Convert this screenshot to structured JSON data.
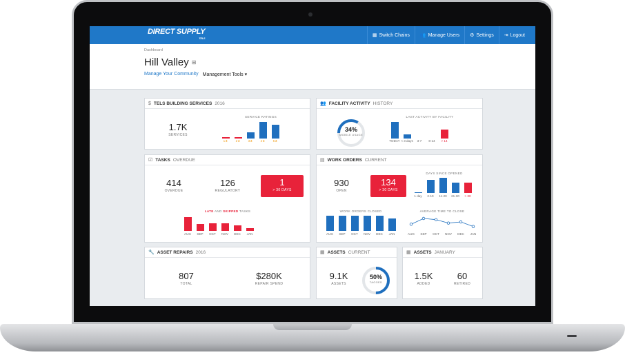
{
  "nav": {
    "logo_main": "DIRECT SUPPLY",
    "logo_sub": "TELS",
    "items": [
      {
        "label": "Switch Chains",
        "icon": "building-icon"
      },
      {
        "label": "Manage Users",
        "icon": "users-icon"
      },
      {
        "label": "Settings",
        "icon": "gear-icon"
      },
      {
        "label": "Logout",
        "icon": "logout-icon"
      }
    ]
  },
  "header": {
    "breadcrumb": "Dashboard",
    "title": "Hill Valley",
    "manage_link": "Manage Your Community",
    "tools_menu": "Management Tools ▾"
  },
  "building": {
    "title_bold": "TELS BUILDING SERVICES",
    "title_light": "2016",
    "stat_value": "1.7K",
    "stat_label": "SERVICES",
    "chart_title": "SERVICE RATINGS",
    "labels": [
      "1★",
      "2★",
      "3★",
      "4★",
      "5★"
    ],
    "values": [
      2,
      2,
      8,
      22,
      18
    ],
    "colors": [
      "red",
      "red",
      "blue",
      "blue",
      "blue"
    ]
  },
  "facility": {
    "title_bold": "FACILITY ACTIVITY",
    "title_light": "HISTORY",
    "donut_value": "34%",
    "donut_label": "MOBILE USAGE",
    "donut_fraction": 0.34,
    "chart_title": "LAST ACTIVITY BY FACILITY",
    "labels": [
      "TODAY",
      "< 3 days",
      "3-7",
      "8-14",
      "> 14"
    ],
    "values": [
      20,
      5,
      0,
      0,
      11
    ],
    "colors": [
      "blue",
      "blue",
      "blue",
      "blue",
      "red"
    ]
  },
  "tasks": {
    "title_bold": "TASKS",
    "title_light": "OVERDUE",
    "overdue_value": "414",
    "overdue_label": "OVERDUE",
    "regulatory_value": "126",
    "regulatory_label": "REGULATORY",
    "alert_value": "1",
    "alert_label": "> 30 DAYS",
    "chart_title_late": "LATE",
    "chart_title_and": "AND",
    "chart_title_skipped": "SKIPPED",
    "chart_title_tasks": "TASKS",
    "labels": [
      "AUG",
      "SEP",
      "OCT",
      "NOV",
      "DEC",
      "JAN"
    ],
    "values": [
      18,
      9,
      10,
      10,
      7,
      4
    ]
  },
  "workorders": {
    "title_bold": "WORK ORDERS",
    "title_light": "CURRENT",
    "open_value": "930",
    "open_label": "OPEN",
    "alert_value": "134",
    "alert_label": "> 30 DAYS",
    "days_title": "DAYS SINCE OPENED",
    "days_labels": [
      "1 day",
      "2-10",
      "11-20",
      "21-30",
      "> 30"
    ],
    "days_values": [
      1,
      18,
      21,
      14,
      14
    ],
    "days_colors": [
      "blue",
      "blue",
      "blue",
      "blue",
      "red"
    ],
    "closed_title": "WORK ORDERS CLOSED",
    "closed_labels": [
      "AUG",
      "SEP",
      "OCT",
      "NOV",
      "DEC",
      "JAN"
    ],
    "closed_values": [
      22,
      22,
      22,
      22,
      22,
      18
    ],
    "avg_title": "AVERAGE TIME TO CLOSE",
    "avg_labels": [
      "AUG",
      "SEP",
      "OCT",
      "NOV",
      "DEC",
      "JAN"
    ],
    "avg_values": [
      4,
      9,
      8,
      5,
      6,
      2
    ]
  },
  "repairs": {
    "title_bold": "ASSET REPAIRS",
    "title_light": "2016",
    "total_value": "807",
    "total_label": "TOTAL",
    "spend_value": "$280K",
    "spend_label": "REPAIR SPEND"
  },
  "assets_current": {
    "title_bold": "ASSETS",
    "title_light": "CURRENT",
    "assets_value": "9.1K",
    "assets_label": "ASSETS",
    "donut_value": "50%",
    "donut_label": "TAGGED",
    "donut_fraction": 0.5
  },
  "assets_january": {
    "title_bold": "ASSETS",
    "title_light": "JANUARY",
    "added_value": "1.5K",
    "added_label": "ADDED",
    "retired_value": "60",
    "retired_label": "RETIRED"
  },
  "colors": {
    "brand": "#1f78c8",
    "bar_blue": "#1f6fbe",
    "alert_red": "#e8223a"
  }
}
